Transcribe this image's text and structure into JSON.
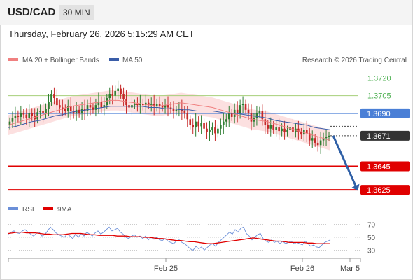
{
  "header": {
    "symbol": "USD/CAD",
    "timeframe": "30 MIN"
  },
  "timestamp": "Thursday, February 26, 2026 5:15:29 AM CET",
  "legend": {
    "bollinger_label": "MA 20 + Bollinger Bands",
    "ma50_label": "MA 50",
    "rsi_label": "RSI",
    "rsi_ma_label": "9MA"
  },
  "credit": "Research © 2026 Trading Central",
  "colors": {
    "up_candle": "#2e7d32",
    "down_candle": "#c62828",
    "bollinger_fill": "#fbd5d5",
    "ma20": "#f08080",
    "ma50": "#3a5da8",
    "resistance": "#a6cf79",
    "pivot": "#4a7fd6",
    "support": "#e00000",
    "current": "#333333",
    "arrow": "#2e5fa6",
    "rsi": "#6b8fd8",
    "rsi_ma": "#e00000"
  },
  "chart_data": [
    {
      "type": "candlestick",
      "title": "USD/CAD",
      "timeframe": "30 MIN",
      "x_ticks": [
        "Feb 25",
        "Feb 26",
        "Mar 5"
      ],
      "ylim": [
        1.3615,
        1.3728
      ],
      "levels": [
        {
          "label": "1.3720",
          "value": 1.372,
          "kind": "resistance"
        },
        {
          "label": "1.3705",
          "value": 1.3705,
          "kind": "resistance"
        },
        {
          "label": "1.3690",
          "value": 1.369,
          "kind": "pivot"
        },
        {
          "label": "1.3671",
          "value": 1.3671,
          "kind": "current"
        },
        {
          "label": "1.3645",
          "value": 1.3645,
          "kind": "support"
        },
        {
          "label": "1.3625",
          "value": 1.3625,
          "kind": "support"
        }
      ],
      "close_series": [
        1.3683,
        1.3686,
        1.3688,
        1.3687,
        1.369,
        1.3689,
        1.3686,
        1.369,
        1.3688,
        1.3685,
        1.3691,
        1.3692,
        1.369,
        1.3694,
        1.37,
        1.3706,
        1.3703,
        1.3697,
        1.3695,
        1.3694,
        1.3692,
        1.3696,
        1.3692,
        1.369,
        1.3693,
        1.369,
        1.3694,
        1.3692,
        1.3697,
        1.3695,
        1.3693,
        1.3697,
        1.37,
        1.3695,
        1.3697,
        1.3703,
        1.3706,
        1.3705,
        1.3709,
        1.3711,
        1.3706,
        1.3702,
        1.3697,
        1.3695,
        1.3697,
        1.3698,
        1.3697,
        1.3698,
        1.3697,
        1.3699,
        1.3697,
        1.3698,
        1.3696,
        1.3698,
        1.3696,
        1.3695,
        1.3697,
        1.3695,
        1.3694,
        1.3692,
        1.3693,
        1.3694,
        1.3692,
        1.369,
        1.3685,
        1.368,
        1.3678,
        1.3683,
        1.3679,
        1.3682,
        1.3677,
        1.3674,
        1.3676,
        1.3678,
        1.3673,
        1.3677,
        1.368,
        1.3683,
        1.3685,
        1.369,
        1.3687,
        1.3693,
        1.369,
        1.3697,
        1.3698,
        1.3693,
        1.369,
        1.3683,
        1.3686,
        1.369,
        1.3692,
        1.3685,
        1.368,
        1.3677,
        1.368,
        1.3676,
        1.3678,
        1.3675,
        1.3677,
        1.3674,
        1.3676,
        1.3678,
        1.3674,
        1.3677,
        1.3674,
        1.3672,
        1.3676,
        1.3673,
        1.3667,
        1.3669,
        1.3665,
        1.3663,
        1.3667,
        1.3669,
        1.367,
        1.3671
      ],
      "ma20": [
        1.368,
        1.3682,
        1.3684,
        1.3686,
        1.3688,
        1.369,
        1.3692,
        1.3694,
        1.3696,
        1.3697,
        1.3698,
        1.3699,
        1.37,
        1.3701,
        1.3701,
        1.37,
        1.3699,
        1.3698,
        1.3697,
        1.3696,
        1.3697,
        1.3698,
        1.3699,
        1.3698,
        1.3697,
        1.3696,
        1.3695,
        1.3693,
        1.3691,
        1.3689,
        1.3687,
        1.3685,
        1.3684,
        1.3683,
        1.3681,
        1.3679,
        1.3677,
        1.3675,
        1.3673,
        1.3671,
        1.3669,
        1.3667
      ],
      "ma50": [
        1.3678,
        1.3679,
        1.3681,
        1.3683,
        1.3684,
        1.3686,
        1.3688,
        1.3689,
        1.3691,
        1.3692,
        1.3693,
        1.3694,
        1.3695,
        1.3696,
        1.3696,
        1.3696,
        1.3696,
        1.3696,
        1.3695,
        1.3695,
        1.3694,
        1.3694,
        1.3693,
        1.3693,
        1.3692,
        1.3692,
        1.3692,
        1.3691,
        1.369,
        1.369,
        1.3689,
        1.3688,
        1.3687,
        1.3686,
        1.3684,
        1.3683,
        1.3682,
        1.3681,
        1.368,
        1.3678,
        1.3677,
        1.3676
      ],
      "forecast_target": 1.3625
    },
    {
      "type": "line",
      "title": "RSI",
      "ylim": [
        25,
        75
      ],
      "y_ticks": [
        70,
        50,
        30
      ],
      "series": [
        {
          "name": "RSI",
          "values": [
            55,
            58,
            60,
            57,
            56,
            60,
            62,
            58,
            55,
            52,
            56,
            58,
            52,
            54,
            60,
            66,
            62,
            57,
            54,
            52,
            50,
            55,
            52,
            48,
            55,
            50,
            56,
            52,
            58,
            55,
            52,
            57,
            60,
            55,
            58,
            62,
            66,
            60,
            62,
            64,
            58,
            55,
            50,
            48,
            52,
            54,
            50,
            52,
            48,
            52,
            46,
            50,
            47,
            50,
            46,
            45,
            48,
            44,
            42,
            40,
            44,
            46,
            42,
            40,
            36,
            32,
            30,
            36,
            32,
            35,
            30,
            34,
            38,
            40,
            36,
            42,
            46,
            50,
            54,
            58,
            55,
            62,
            58,
            64,
            66,
            56,
            52,
            46,
            50,
            54,
            56,
            48,
            44,
            42,
            46,
            42,
            44,
            40,
            44,
            40,
            42,
            44,
            40,
            42,
            40,
            38,
            44,
            40,
            36,
            38,
            35,
            34,
            38,
            42,
            44,
            46
          ]
        },
        {
          "name": "9MA",
          "values": [
            56,
            57,
            58,
            58,
            57,
            57,
            57,
            56,
            55,
            55,
            54,
            54,
            54,
            55,
            56,
            56,
            56,
            55,
            54,
            54,
            53,
            53,
            53,
            53,
            52,
            52,
            52,
            51,
            51,
            51,
            50,
            50,
            49,
            48,
            48,
            47,
            46,
            45,
            45,
            44,
            43,
            43,
            42,
            41,
            40,
            40,
            41,
            42,
            43,
            44,
            45,
            46,
            47,
            48,
            49,
            48,
            47,
            46,
            45,
            44,
            44,
            43,
            42,
            42,
            42,
            42,
            41,
            41,
            40,
            40,
            40,
            40
          ]
        }
      ]
    }
  ]
}
